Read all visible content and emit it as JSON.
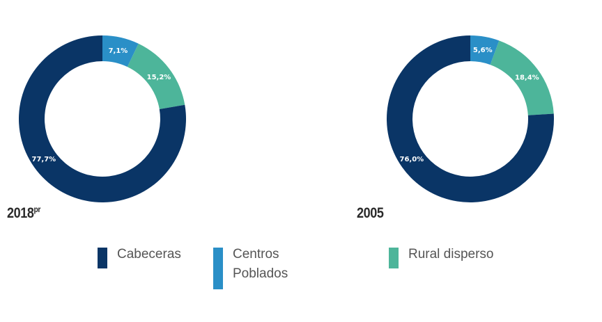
{
  "colors": {
    "cabeceras": "#0a3566",
    "centros": "#2a8fc7",
    "rural": "#4db59a"
  },
  "chart_data": [
    {
      "type": "pie",
      "title": "2018",
      "title_superscript": "pr",
      "categories": [
        "Cabeceras",
        "Centros Poblados",
        "Rural disperso"
      ],
      "values": [
        77.7,
        7.1,
        15.2
      ],
      "data_labels": [
        "77,7%",
        "7,1%",
        "15,2%"
      ]
    },
    {
      "type": "pie",
      "title": "2005",
      "title_superscript": "",
      "categories": [
        "Cabeceras",
        "Centros Poblados",
        "Rural disperso"
      ],
      "values": [
        76.0,
        5.6,
        18.4
      ],
      "data_labels": [
        "76,0%",
        "5,6%",
        "18,4%"
      ]
    }
  ],
  "legend": [
    {
      "label": "Cabeceras",
      "color_key": "cabeceras"
    },
    {
      "label": "Centros Poblados",
      "color_key": "centros"
    },
    {
      "label": "Rural disperso",
      "color_key": "rural"
    }
  ]
}
